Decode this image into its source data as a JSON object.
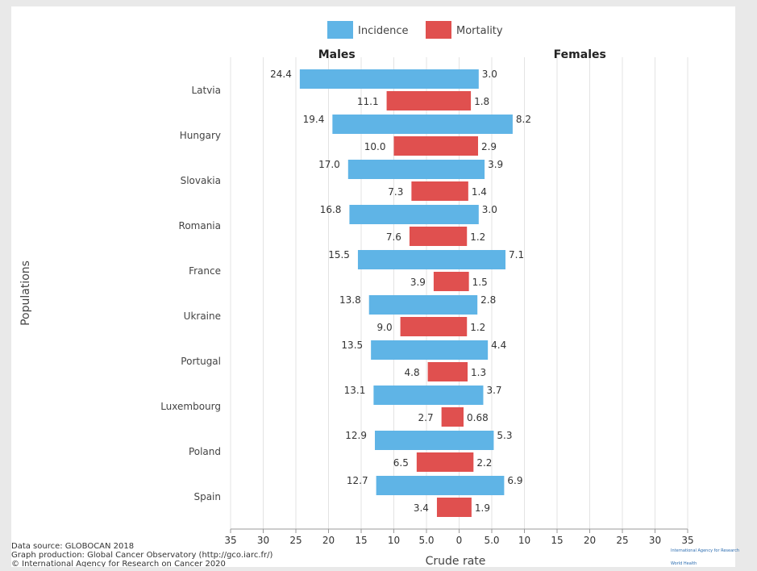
{
  "chart_data": {
    "type": "bar",
    "orientation": "horizontal",
    "layout": "butterfly",
    "categories": [
      "Latvia",
      "Hungary",
      "Slovakia",
      "Romania",
      "France",
      "Ukraine",
      "Portugal",
      "Luxembourg",
      "Poland",
      "Spain"
    ],
    "sides": [
      "Males",
      "Females"
    ],
    "series": [
      {
        "name": "Incidence",
        "color": "#5fb4e6",
        "males": [
          24.4,
          19.4,
          17.0,
          16.8,
          15.5,
          13.8,
          13.5,
          13.1,
          12.9,
          12.7
        ],
        "females": [
          3.0,
          8.2,
          3.9,
          3.0,
          7.1,
          2.8,
          4.4,
          3.7,
          5.3,
          6.9
        ],
        "males_labels": [
          "24.4",
          "19.4",
          "17.0",
          "16.8",
          "15.5",
          "13.8",
          "13.5",
          "13.1",
          "12.9",
          "12.7"
        ],
        "females_labels": [
          "3.0",
          "8.2",
          "3.9",
          "3.0",
          "7.1",
          "2.8",
          "4.4",
          "3.7",
          "5.3",
          "6.9"
        ]
      },
      {
        "name": "Mortality",
        "color": "#e0504f",
        "males": [
          11.1,
          10.0,
          7.3,
          7.6,
          3.9,
          9.0,
          4.8,
          2.7,
          6.5,
          3.4
        ],
        "females": [
          1.8,
          2.9,
          1.4,
          1.2,
          1.5,
          1.2,
          1.3,
          0.68,
          2.2,
          1.9
        ],
        "males_labels": [
          "11.1",
          "10.0",
          "7.3",
          "7.6",
          "3.9",
          "9.0",
          "4.8",
          "2.7",
          "6.5",
          "3.4"
        ],
        "females_labels": [
          "1.8",
          "2.9",
          "1.4",
          "1.2",
          "1.5",
          "1.2",
          "1.3",
          "0.68",
          "2.2",
          "1.9"
        ]
      }
    ],
    "xlabel": "Crude rate",
    "ylabel": "Populations",
    "xlim": [
      -35,
      35
    ],
    "x_ticks": [
      -35,
      -30,
      -25,
      -20,
      -15,
      -10,
      -5,
      0,
      5,
      10,
      15,
      20,
      25,
      30,
      35
    ],
    "x_tick_labels": [
      "35",
      "30",
      "25",
      "20",
      "15",
      "10",
      "5.0",
      "0",
      "5.0",
      "10",
      "15",
      "20",
      "25",
      "30",
      "35"
    ],
    "grid": true,
    "legend_position": "top-center",
    "source_lines": [
      "Data source: GLOBOCAN 2018",
      "Graph production: Global Cancer Observatory (http://gco.iarc.fr/)",
      "© International Agency for Research on Cancer 2020"
    ],
    "logo_lines": [
      "International Agency for Research",
      "World Health"
    ]
  }
}
